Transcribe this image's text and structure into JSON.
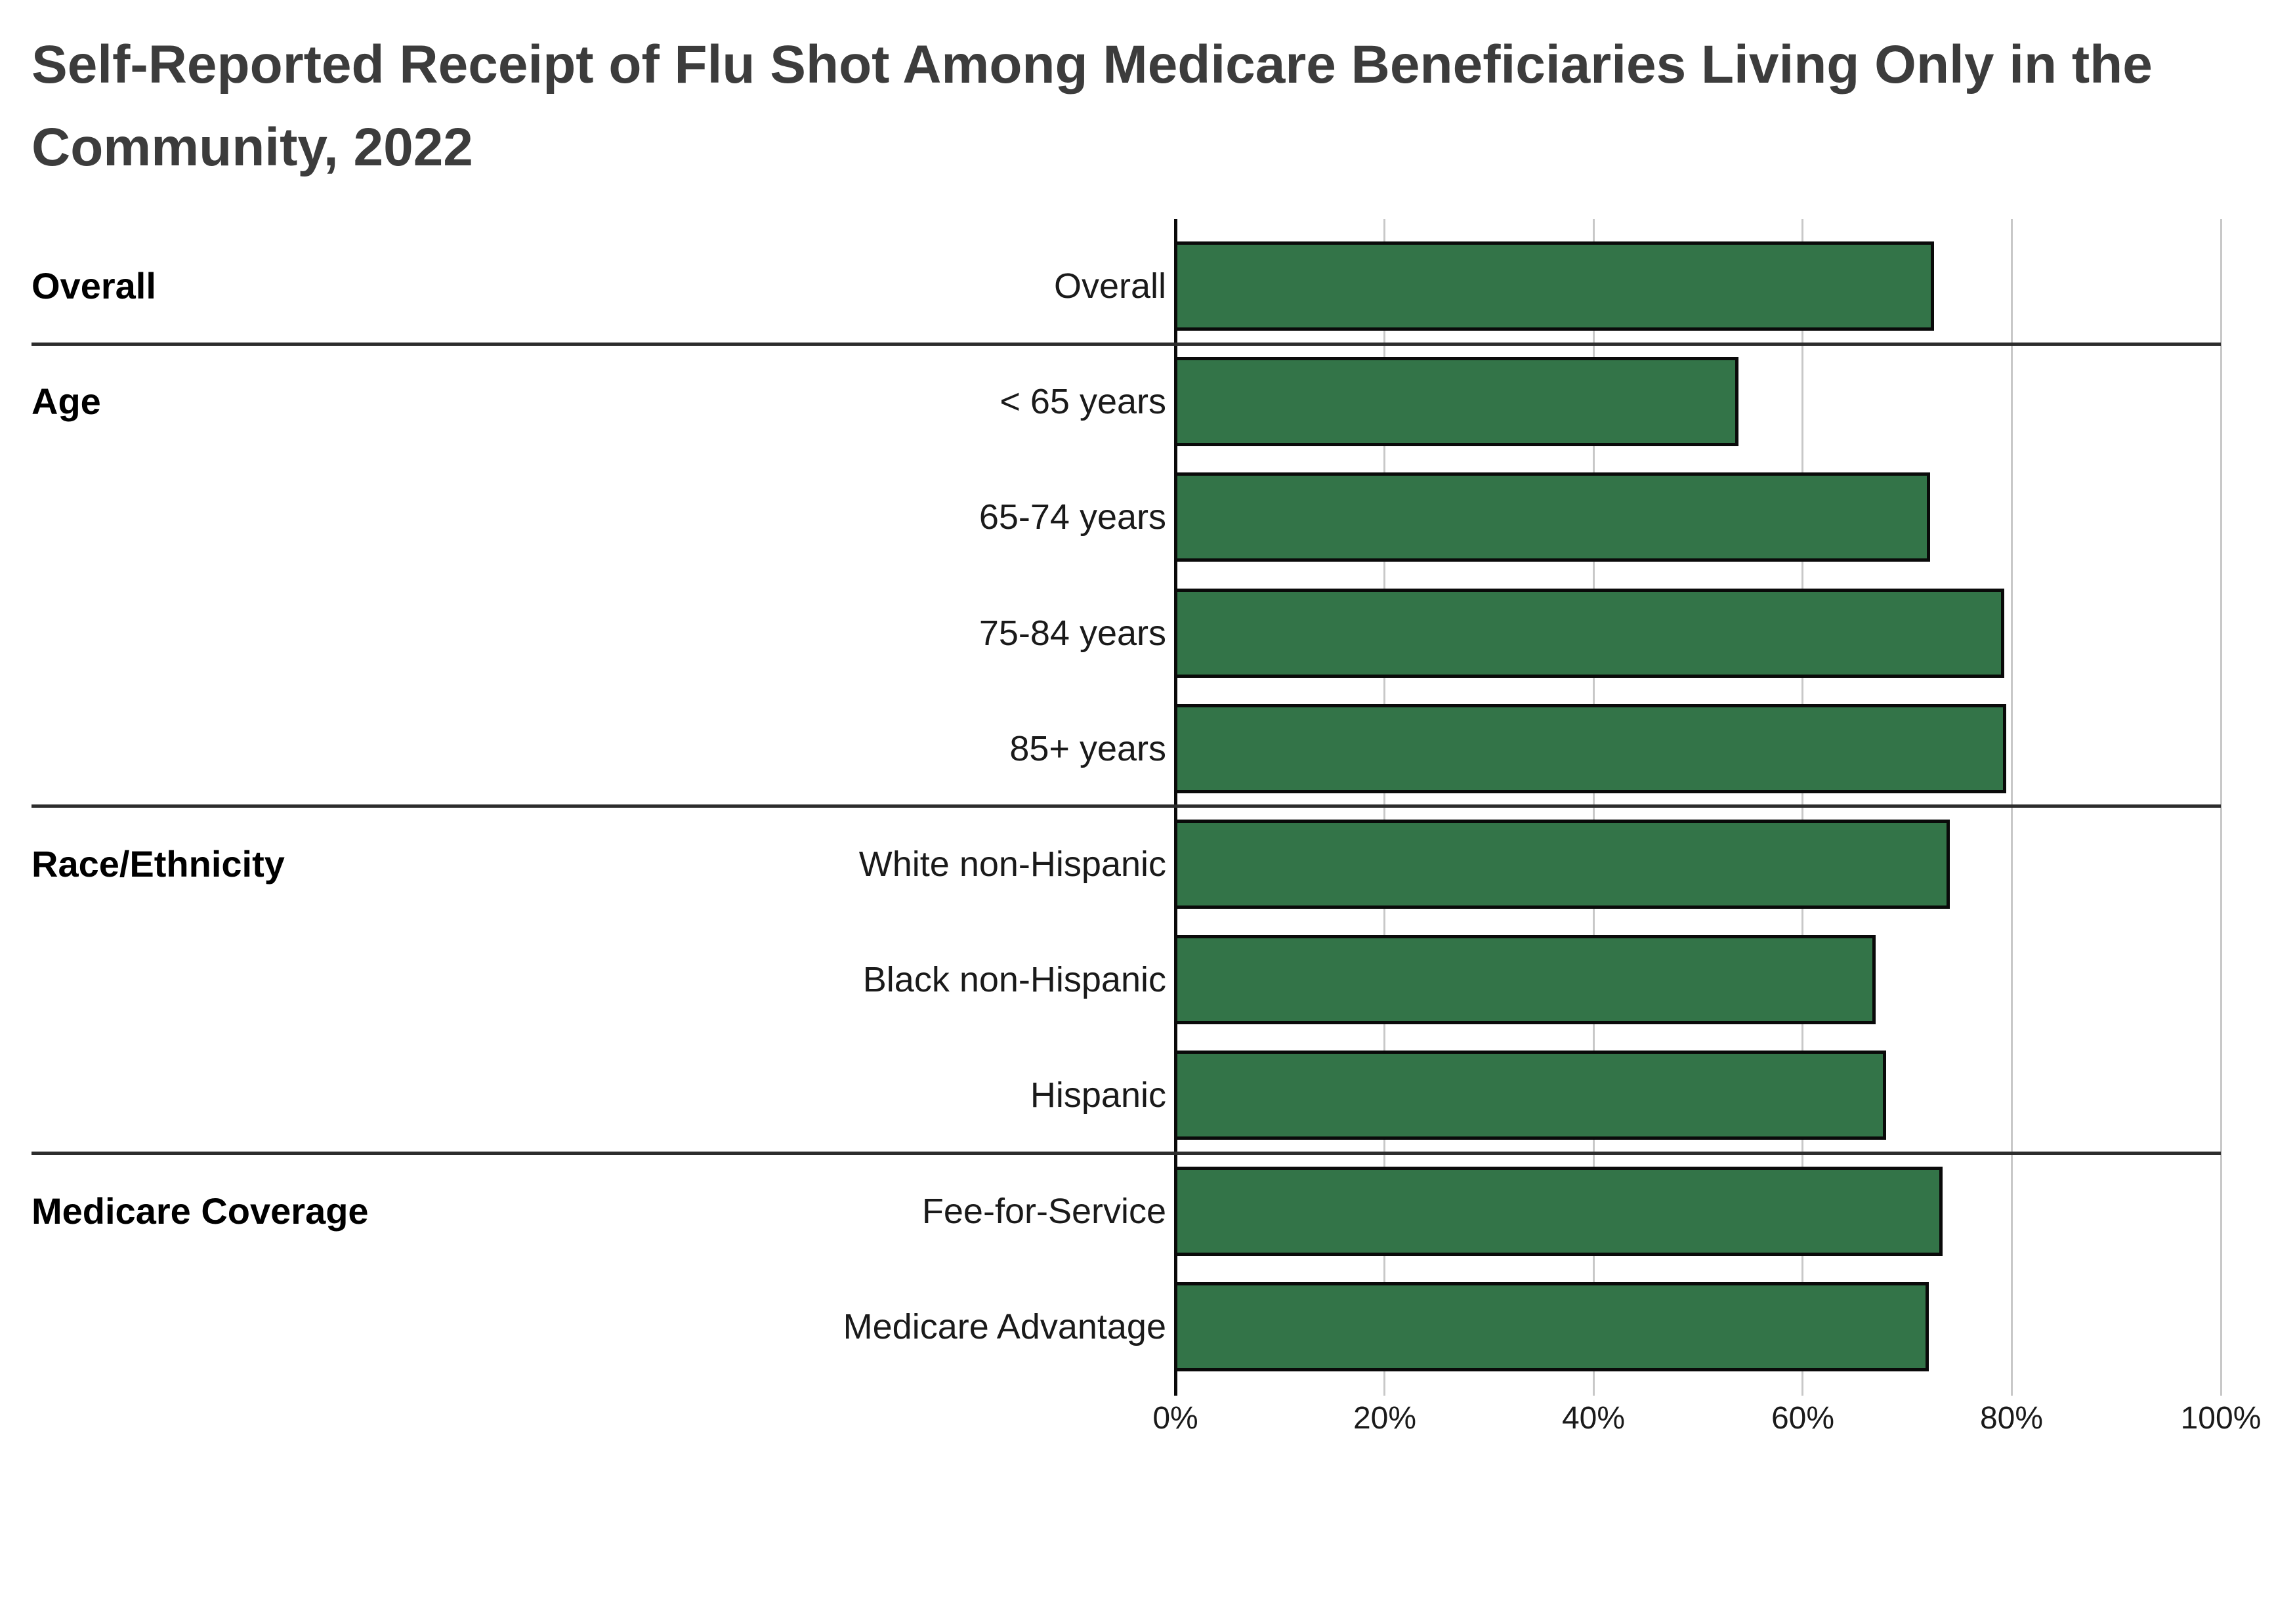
{
  "title": {
    "line1": "Self-Reported Receipt of Flu Shot Among Medicare Beneficiaries Living Only in the",
    "line2": "Community, 2022"
  },
  "colors": {
    "bar_fill": "#337448",
    "bar_stroke": "#0a0a0a",
    "gridline": "#c8c8c8",
    "axis_line": "#0a0a0a",
    "separator": "#2d2d2d",
    "title_text": "#3c3c3c",
    "label_text": "#1a1a1a",
    "background": "#ffffff"
  },
  "chart_data": {
    "type": "bar",
    "orientation": "horizontal",
    "title": "Self-Reported Receipt of Flu Shot Among Medicare Beneficiaries Living Only in the Community, 2022",
    "unit": "percent",
    "xlabel": "",
    "ylabel": "",
    "xlim": [
      0,
      100
    ],
    "x_tick_labels": [
      "0%",
      "20%",
      "40%",
      "60%",
      "80%",
      "100%"
    ],
    "grid": true,
    "legend": "none",
    "categories": [
      "Overall",
      "< 65 years",
      "65-74 years",
      "75-84 years",
      "85+ years",
      "White non-Hispanic",
      "Black non-Hispanic",
      "Hispanic",
      "Fee-for-Service",
      "Medicare Advantage"
    ],
    "values": [
      72.4,
      53.7,
      72.0,
      79.1,
      79.3,
      73.9,
      66.8,
      67.8,
      73.2,
      71.9
    ],
    "groups": [
      {
        "label": "Overall",
        "categories": [
          "Overall"
        ],
        "values": [
          72.4
        ]
      },
      {
        "label": "Age",
        "categories": [
          "< 65 years",
          "65-74 years",
          "75-84 years",
          "85+ years"
        ],
        "values": [
          53.7,
          72.0,
          79.1,
          79.3
        ]
      },
      {
        "label": "Race/Ethnicity",
        "categories": [
          "White non-Hispanic",
          "Black non-Hispanic",
          "Hispanic"
        ],
        "values": [
          73.9,
          66.8,
          67.8
        ]
      },
      {
        "label": "Medicare Coverage",
        "categories": [
          "Fee-for-Service",
          "Medicare Advantage"
        ],
        "values": [
          73.2,
          71.9
        ]
      }
    ]
  }
}
